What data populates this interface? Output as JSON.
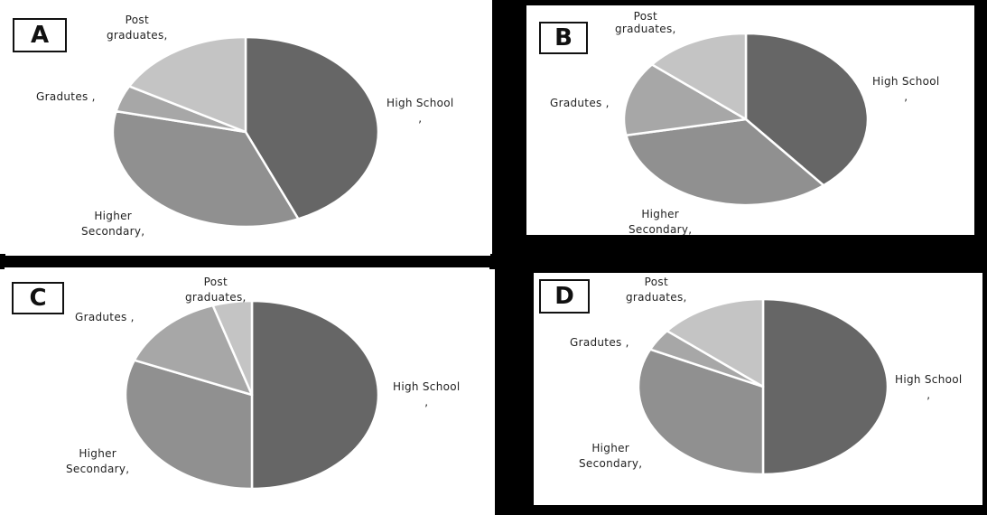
{
  "colors": {
    "high_school": "#666666",
    "higher_secondary": "#909090",
    "gradutes": "#a7a7a7",
    "post_graduates": "#c4c4c4",
    "separator": "#ffffff"
  },
  "chart_data": [
    {
      "type": "pie",
      "panel_label": "A",
      "categories": [
        "High School",
        "Higher Secondary",
        "Gradutes",
        "Post graduates"
      ],
      "values": [
        43.5,
        35,
        4.5,
        17
      ],
      "labels": {
        "high_school": [
          "High School",
          ","
        ],
        "higher_secondary": [
          "Higher",
          "Secondary,"
        ],
        "gradutes": [
          "Gradutes ,"
        ],
        "post_graduates": [
          "Post",
          "graduates,"
        ]
      }
    },
    {
      "type": "pie",
      "panel_label": "B",
      "categories": [
        "High School",
        "Higher Secondary",
        "Gradutes",
        "Post graduates"
      ],
      "values": [
        39,
        33,
        14,
        14
      ],
      "labels": {
        "high_school": [
          "High School",
          ","
        ],
        "higher_secondary": [
          "Higher",
          "Secondary,"
        ],
        "gradutes": [
          "Gradutes ,"
        ],
        "post_graduates": [
          "Post",
          "graduates,"
        ]
      }
    },
    {
      "type": "pie",
      "panel_label": "C",
      "categories": [
        "High School",
        "Higher Secondary",
        "Gradutes",
        "Post graduates"
      ],
      "values": [
        50,
        31,
        14,
        5
      ],
      "labels": {
        "high_school": [
          "High School",
          ","
        ],
        "higher_secondary": [
          "Higher",
          "Secondary,"
        ],
        "gradutes": [
          "Gradutes ,"
        ],
        "post_graduates": [
          "Post",
          "graduates,"
        ]
      }
    },
    {
      "type": "pie",
      "panel_label": "D",
      "categories": [
        "High School",
        "Higher Secondary",
        "Gradutes",
        "Post graduates"
      ],
      "values": [
        50,
        32,
        4,
        14
      ],
      "labels": {
        "high_school": [
          "High School",
          ","
        ],
        "higher_secondary": [
          "Higher",
          "Secondary,"
        ],
        "gradutes": [
          "Gradutes ,"
        ],
        "post_graduates": [
          "Post",
          "graduates,"
        ]
      }
    }
  ]
}
